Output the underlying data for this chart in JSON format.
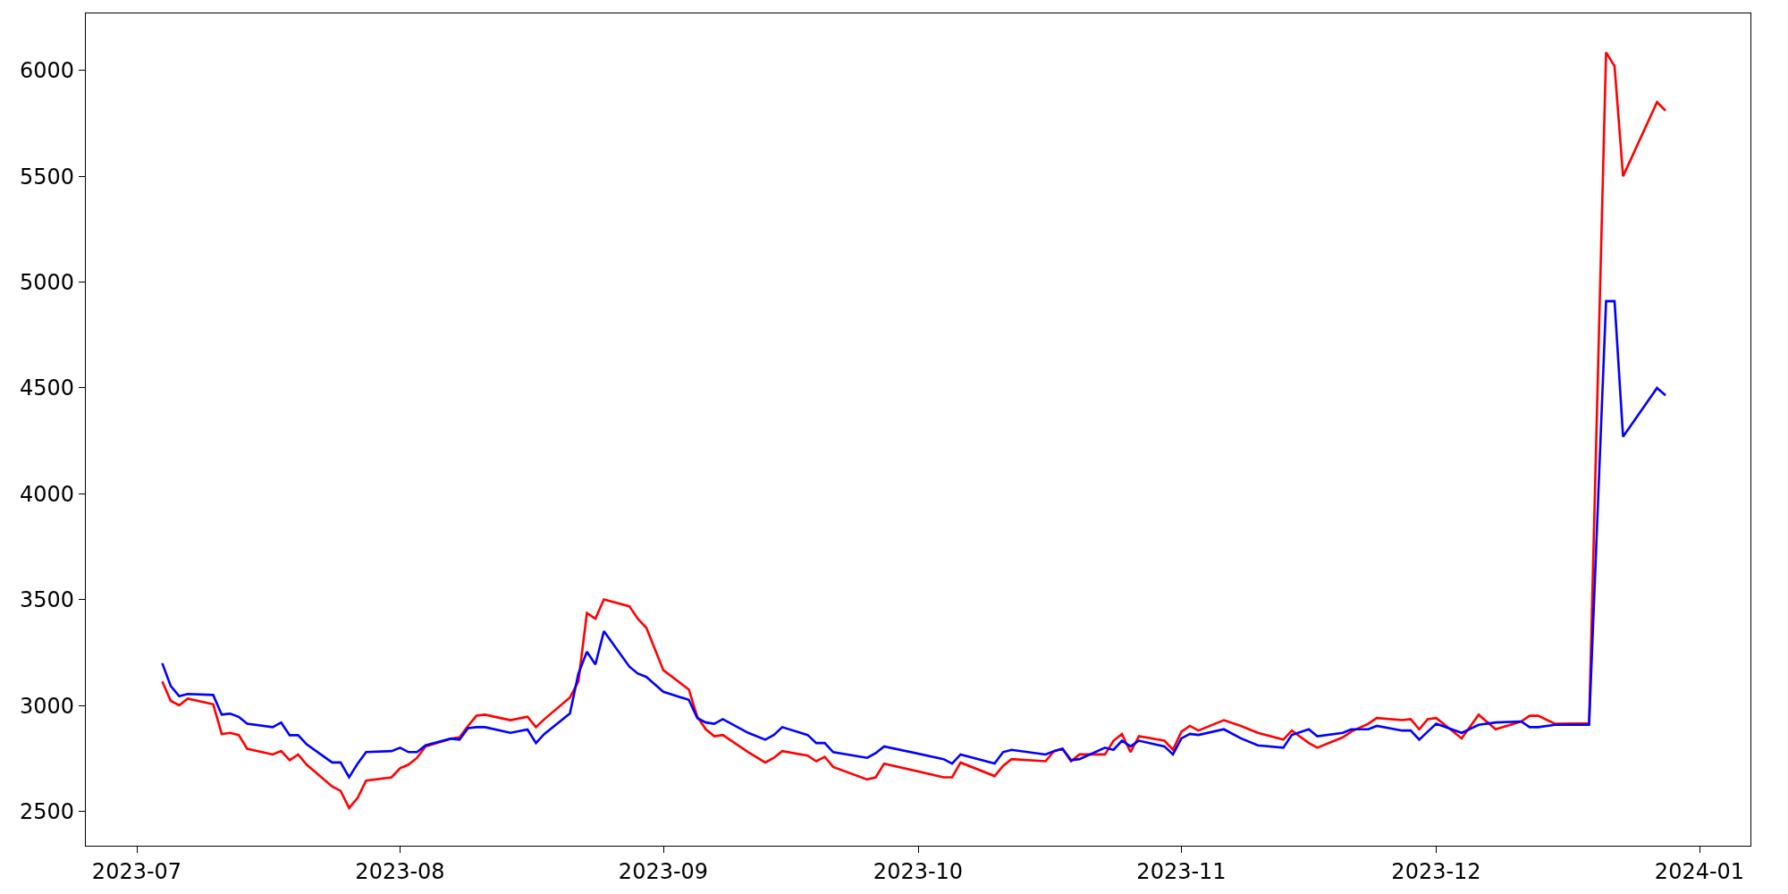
{
  "chart_data": {
    "type": "line",
    "x": [
      "2023-07-04",
      "2023-07-05",
      "2023-07-06",
      "2023-07-07",
      "2023-07-10",
      "2023-07-11",
      "2023-07-12",
      "2023-07-13",
      "2023-07-14",
      "2023-07-17",
      "2023-07-18",
      "2023-07-19",
      "2023-07-20",
      "2023-07-21",
      "2023-07-24",
      "2023-07-25",
      "2023-07-26",
      "2023-07-27",
      "2023-07-28",
      "2023-07-31",
      "2023-08-01",
      "2023-08-02",
      "2023-08-03",
      "2023-08-04",
      "2023-08-07",
      "2023-08-08",
      "2023-08-09",
      "2023-08-10",
      "2023-08-11",
      "2023-08-14",
      "2023-08-16",
      "2023-08-17",
      "2023-08-18",
      "2023-08-21",
      "2023-08-22",
      "2023-08-23",
      "2023-08-24",
      "2023-08-25",
      "2023-08-28",
      "2023-08-29",
      "2023-08-30",
      "2023-09-01",
      "2023-09-04",
      "2023-09-05",
      "2023-09-06",
      "2023-09-07",
      "2023-09-08",
      "2023-09-11",
      "2023-09-13",
      "2023-09-14",
      "2023-09-15",
      "2023-09-18",
      "2023-09-19",
      "2023-09-20",
      "2023-09-21",
      "2023-09-25",
      "2023-09-26",
      "2023-09-27",
      "2023-10-04",
      "2023-10-05",
      "2023-10-06",
      "2023-10-10",
      "2023-10-11",
      "2023-10-12",
      "2023-10-16",
      "2023-10-17",
      "2023-10-18",
      "2023-10-19",
      "2023-10-20",
      "2023-10-23",
      "2023-10-24",
      "2023-10-25",
      "2023-10-26",
      "2023-10-27",
      "2023-10-30",
      "2023-10-31",
      "2023-11-01",
      "2023-11-02",
      "2023-11-03",
      "2023-11-06",
      "2023-11-08",
      "2023-11-10",
      "2023-11-13",
      "2023-11-14",
      "2023-11-16",
      "2023-11-17",
      "2023-11-20",
      "2023-11-21",
      "2023-11-23",
      "2023-11-24",
      "2023-11-27",
      "2023-11-28",
      "2023-11-29",
      "2023-11-30",
      "2023-12-01",
      "2023-12-04",
      "2023-12-06",
      "2023-12-08",
      "2023-12-11",
      "2023-12-12",
      "2023-12-13",
      "2023-12-15",
      "2023-12-19",
      "2023-12-21",
      "2023-12-22",
      "2023-12-23",
      "2023-12-27",
      "2023-12-28"
    ],
    "series": [
      {
        "color": "#ff0000",
        "values": [
          3114,
          3022,
          3001,
          3033,
          3006,
          2866,
          2871,
          2861,
          2796,
          2769,
          2785,
          2742,
          2769,
          2721,
          2618,
          2597,
          2516,
          2564,
          2645,
          2661,
          2704,
          2721,
          2753,
          2807,
          2844,
          2850,
          2904,
          2952,
          2957,
          2931,
          2947,
          2898,
          2936,
          3038,
          3114,
          3437,
          3410,
          3501,
          3469,
          3410,
          3367,
          3167,
          3076,
          2947,
          2888,
          2855,
          2861,
          2780,
          2731,
          2753,
          2785,
          2764,
          2737,
          2758,
          2710,
          2651,
          2661,
          2726,
          2661,
          2661,
          2731,
          2667,
          2715,
          2747,
          2737,
          2785,
          2796,
          2737,
          2769,
          2769,
          2834,
          2866,
          2780,
          2855,
          2834,
          2791,
          2877,
          2904,
          2882,
          2931,
          2904,
          2871,
          2839,
          2882,
          2823,
          2801,
          2850,
          2877,
          2914,
          2941,
          2931,
          2936,
          2888,
          2936,
          2941,
          2845,
          2957,
          2888,
          2925,
          2952,
          2952,
          2914,
          2916,
          6085,
          6020,
          5500,
          5850,
          5810
        ]
      },
      {
        "color": "#0000ff",
        "values": [
          3200,
          3092,
          3044,
          3055,
          3050,
          2957,
          2962,
          2947,
          2914,
          2898,
          2920,
          2860,
          2860,
          2817,
          2731,
          2731,
          2661,
          2726,
          2780,
          2785,
          2801,
          2780,
          2780,
          2812,
          2844,
          2839,
          2893,
          2898,
          2898,
          2871,
          2887,
          2823,
          2866,
          2963,
          3151,
          3254,
          3194,
          3351,
          3184,
          3151,
          3135,
          3065,
          3027,
          2941,
          2920,
          2914,
          2936,
          2871,
          2839,
          2861,
          2898,
          2861,
          2823,
          2823,
          2780,
          2753,
          2775,
          2807,
          2747,
          2726,
          2769,
          2726,
          2780,
          2791,
          2769,
          2785,
          2796,
          2742,
          2747,
          2801,
          2791,
          2834,
          2807,
          2834,
          2807,
          2769,
          2845,
          2866,
          2861,
          2888,
          2845,
          2812,
          2801,
          2861,
          2888,
          2855,
          2871,
          2888,
          2888,
          2904,
          2882,
          2882,
          2839,
          2877,
          2914,
          2871,
          2909,
          2920,
          2925,
          2898,
          2898,
          2909,
          2909,
          4910,
          4910,
          4270,
          4500,
          4465
        ]
      }
    ],
    "xlim": [
      "2023-06-25",
      "2024-01-07"
    ],
    "xticks": [
      {
        "value": "2023-07-01",
        "label": "2023-07"
      },
      {
        "value": "2023-08-01",
        "label": "2023-08"
      },
      {
        "value": "2023-09-01",
        "label": "2023-09"
      },
      {
        "value": "2023-10-01",
        "label": "2023-10"
      },
      {
        "value": "2023-11-01",
        "label": "2023-11"
      },
      {
        "value": "2023-12-01",
        "label": "2023-12"
      },
      {
        "value": "2024-01-01",
        "label": "2024-01"
      }
    ],
    "ylim": [
      2338,
      6269
    ],
    "yticks": [
      2500,
      3000,
      3500,
      4000,
      4500,
      5000,
      5500,
      6000
    ],
    "marker": "none",
    "line_style": "solid"
  }
}
